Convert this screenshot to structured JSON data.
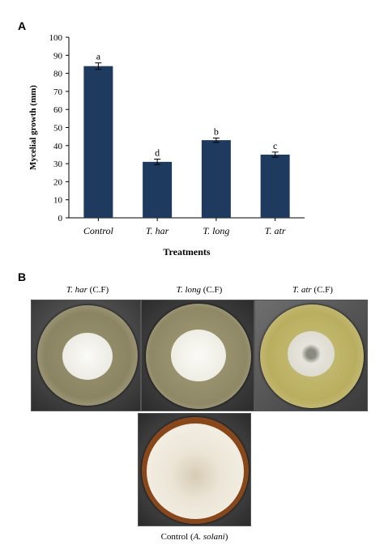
{
  "panels": {
    "a_label": "A",
    "b_label": "B"
  },
  "chart_data": {
    "type": "bar",
    "categories": [
      "Control",
      "T. har",
      "T. long",
      "T. atr"
    ],
    "values": [
      84,
      31,
      43,
      35
    ],
    "errors": [
      1.8,
      1.5,
      1.2,
      1.4
    ],
    "significance_letters": [
      "a",
      "d",
      "b",
      "c"
    ],
    "xlabel": "Treatments",
    "ylabel": "Mycelial growth (mm)",
    "ylim": [
      0,
      100
    ],
    "yticks": [
      0,
      10,
      20,
      30,
      40,
      50,
      60,
      70,
      80,
      90,
      100
    ],
    "bar_color": "#1f3a5f",
    "grid": false
  },
  "photos": [
    {
      "caption_italic": "T. har",
      "caption_rest": " (C.F)"
    },
    {
      "caption_italic": "T. long",
      "caption_rest": " (C.F)"
    },
    {
      "caption_italic": "T. atr",
      "caption_rest": " (C.F)"
    },
    {
      "caption_rest_before": "Control (",
      "caption_italic": "A. solani",
      "caption_rest": ")"
    }
  ]
}
